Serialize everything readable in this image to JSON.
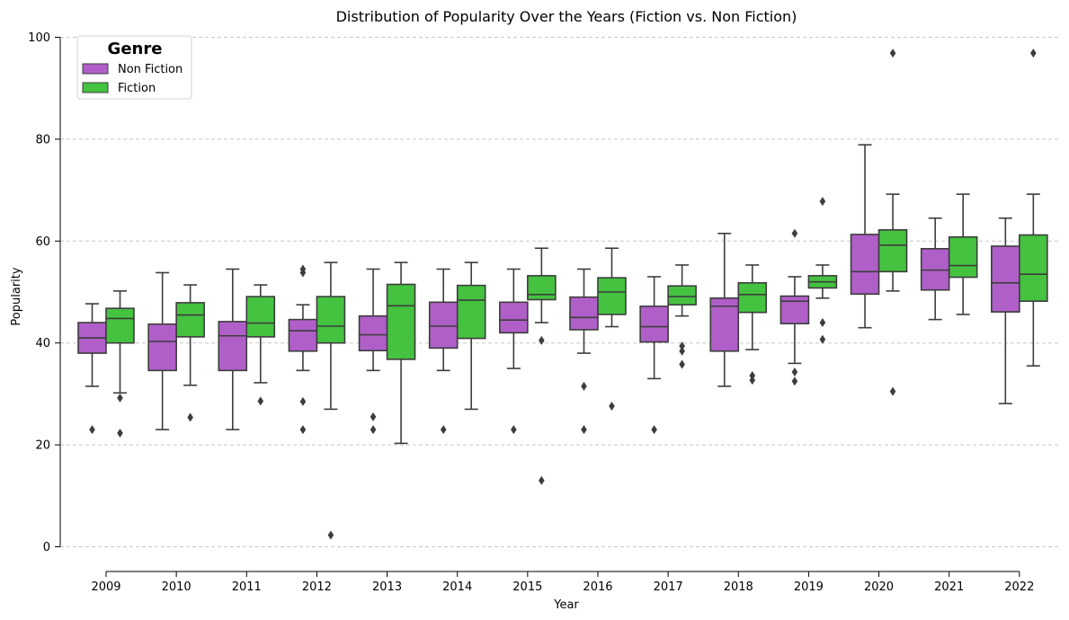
{
  "chart_data": {
    "type": "box",
    "title": "Distribution of Popularity Over the Years (Fiction vs. Non Fiction)",
    "xlabel": "Year",
    "ylabel": "Popularity",
    "ylim": [
      -5,
      100
    ],
    "yticks": [
      0,
      20,
      40,
      60,
      80,
      100
    ],
    "grid": "horizontal dashed",
    "legend": {
      "title": "Genre",
      "placement": "top-left"
    },
    "colors": {
      "Non Fiction": "#b05fc8",
      "Fiction": "#44c240",
      "outline": "#3d3d3d"
    },
    "categories": [
      "2009",
      "2010",
      "2011",
      "2012",
      "2013",
      "2014",
      "2015",
      "2016",
      "2017",
      "2018",
      "2019",
      "2020",
      "2021",
      "2022"
    ],
    "series": [
      {
        "name": "Non Fiction",
        "boxes": [
          {
            "q1": 38,
            "median": 41,
            "q3": 44,
            "whisker_low": 31.5,
            "whisker_high": 47.7,
            "outliers": [
              23
            ]
          },
          {
            "q1": 34.6,
            "median": 40.3,
            "q3": 43.7,
            "whisker_low": 23,
            "whisker_high": 53.8,
            "outliers": []
          },
          {
            "q1": 34.6,
            "median": 41.4,
            "q3": 44.2,
            "whisker_low": 23,
            "whisker_high": 54.5,
            "outliers": []
          },
          {
            "q1": 38.4,
            "median": 42.4,
            "q3": 44.6,
            "whisker_low": 34.6,
            "whisker_high": 47.5,
            "outliers": [
              54.5,
              53.8,
              28.5,
              23
            ]
          },
          {
            "q1": 38.5,
            "median": 41.6,
            "q3": 45.3,
            "whisker_low": 34.6,
            "whisker_high": 54.5,
            "outliers": [
              25.5,
              23
            ]
          },
          {
            "q1": 39,
            "median": 43.3,
            "q3": 48,
            "whisker_low": 34.6,
            "whisker_high": 54.5,
            "outliers": [
              23
            ]
          },
          {
            "q1": 42,
            "median": 44.5,
            "q3": 48,
            "whisker_low": 35,
            "whisker_high": 54.5,
            "outliers": [
              23
            ]
          },
          {
            "q1": 42.6,
            "median": 45,
            "q3": 49,
            "whisker_low": 38,
            "whisker_high": 54.5,
            "outliers": [
              31.5,
              23
            ]
          },
          {
            "q1": 40.2,
            "median": 43.2,
            "q3": 47.2,
            "whisker_low": 33,
            "whisker_high": 53,
            "outliers": [
              23
            ]
          },
          {
            "q1": 38.4,
            "median": 47.2,
            "q3": 48.8,
            "whisker_low": 31.5,
            "whisker_high": 61.5,
            "outliers": []
          },
          {
            "q1": 43.8,
            "median": 48.2,
            "q3": 49.2,
            "whisker_low": 36,
            "whisker_high": 53,
            "outliers": [
              61.5,
              34.3,
              32.5
            ]
          },
          {
            "q1": 49.6,
            "median": 54,
            "q3": 61.3,
            "whisker_low": 43,
            "whisker_high": 78.9,
            "outliers": []
          },
          {
            "q1": 50.4,
            "median": 54.3,
            "q3": 58.5,
            "whisker_low": 44.6,
            "whisker_high": 64.5,
            "outliers": []
          },
          {
            "q1": 46.1,
            "median": 51.8,
            "q3": 59,
            "whisker_low": 28.1,
            "whisker_high": 64.5,
            "outliers": []
          }
        ]
      },
      {
        "name": "Fiction",
        "boxes": [
          {
            "q1": 40,
            "median": 44.8,
            "q3": 46.8,
            "whisker_low": 30.2,
            "whisker_high": 50.2,
            "outliers": [
              29.2,
              22.3
            ]
          },
          {
            "q1": 41.2,
            "median": 45.5,
            "q3": 47.9,
            "whisker_low": 31.7,
            "whisker_high": 51.4,
            "outliers": [
              25.4
            ]
          },
          {
            "q1": 41.2,
            "median": 43.9,
            "q3": 49.1,
            "whisker_low": 32.2,
            "whisker_high": 51.4,
            "outliers": [
              28.6
            ]
          },
          {
            "q1": 40,
            "median": 43.3,
            "q3": 49.1,
            "whisker_low": 27,
            "whisker_high": 55.8,
            "outliers": [
              2.3
            ]
          },
          {
            "q1": 36.8,
            "median": 47.3,
            "q3": 51.5,
            "whisker_low": 20.3,
            "whisker_high": 55.8,
            "outliers": []
          },
          {
            "q1": 40.9,
            "median": 48.4,
            "q3": 51.3,
            "whisker_low": 27,
            "whisker_high": 55.8,
            "outliers": []
          },
          {
            "q1": 48.5,
            "median": 49.5,
            "q3": 53.2,
            "whisker_low": 44,
            "whisker_high": 58.6,
            "outliers": [
              40.5,
              13
            ]
          },
          {
            "q1": 45.6,
            "median": 50,
            "q3": 52.8,
            "whisker_low": 43.2,
            "whisker_high": 58.6,
            "outliers": [
              27.6
            ]
          },
          {
            "q1": 47.5,
            "median": 49.1,
            "q3": 51.2,
            "whisker_low": 45.3,
            "whisker_high": 55.3,
            "outliers": [
              39.4,
              38.4,
              35.8
            ]
          },
          {
            "q1": 46,
            "median": 49.5,
            "q3": 51.8,
            "whisker_low": 38.7,
            "whisker_high": 55.3,
            "outliers": [
              33.6,
              32.7
            ]
          },
          {
            "q1": 50.8,
            "median": 52,
            "q3": 53.2,
            "whisker_low": 48.8,
            "whisker_high": 55.3,
            "outliers": [
              67.8,
              44,
              40.7
            ]
          },
          {
            "q1": 54,
            "median": 59.2,
            "q3": 62.2,
            "whisker_low": 50.2,
            "whisker_high": 69.2,
            "outliers": [
              96.9,
              30.5
            ]
          },
          {
            "q1": 52.9,
            "median": 55.2,
            "q3": 60.8,
            "whisker_low": 45.6,
            "whisker_high": 69.2,
            "outliers": []
          },
          {
            "q1": 48.2,
            "median": 53.5,
            "q3": 61.2,
            "whisker_low": 35.5,
            "whisker_high": 69.2,
            "outliers": [
              96.9
            ]
          }
        ]
      }
    ]
  }
}
